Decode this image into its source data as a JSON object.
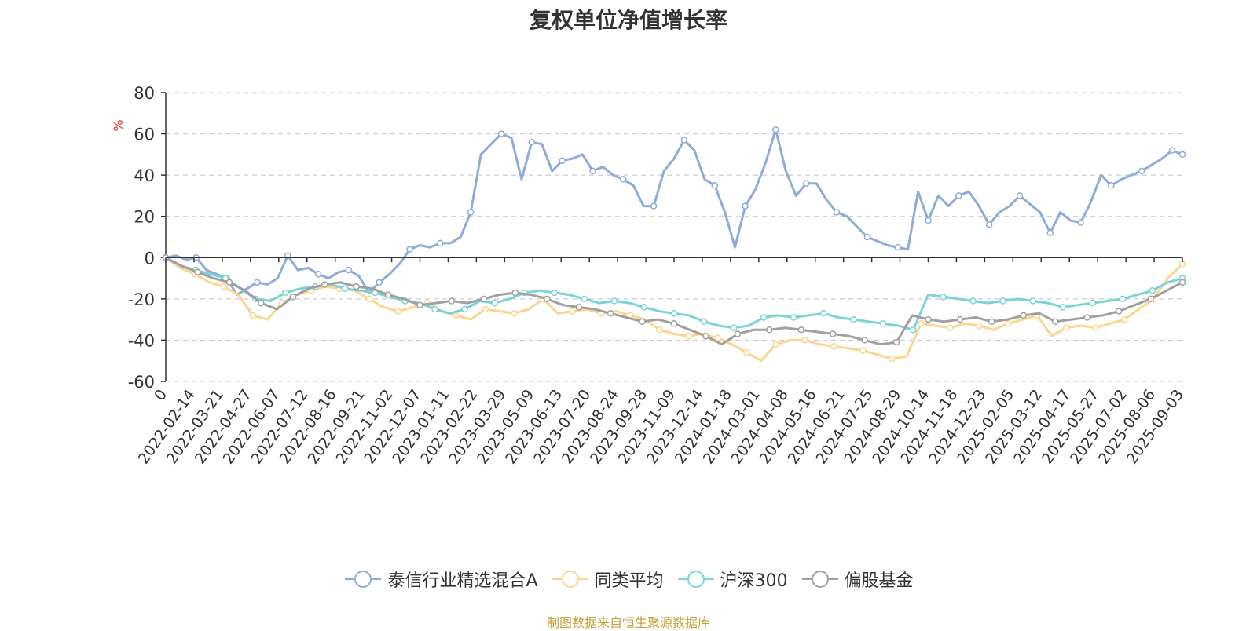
{
  "chart_data": {
    "type": "line",
    "title": "复权单位净值增长率",
    "ylabel": "%",
    "ylim": [
      -60,
      80
    ],
    "yticks": [
      -60,
      -40,
      -20,
      0,
      20,
      40,
      60,
      80
    ],
    "grid": true,
    "legend_position": "bottom",
    "x_ticks": [
      "0",
      "2022-02-14",
      "2022-03-21",
      "2022-04-27",
      "2022-06-07",
      "2022-07-12",
      "2022-08-16",
      "2022-09-21",
      "2022-11-02",
      "2022-12-07",
      "2023-01-11",
      "2023-02-22",
      "2023-03-29",
      "2023-05-09",
      "2023-06-13",
      "2023-07-20",
      "2023-08-24",
      "2023-09-28",
      "2023-11-09",
      "2023-12-14",
      "2024-01-18",
      "2024-03-01",
      "2024-04-08",
      "2024-05-16",
      "2024-06-21",
      "2024-07-25",
      "2024-08-29",
      "2024-10-14",
      "2024-11-18",
      "2024-12-23",
      "2025-02-05",
      "2025-03-12",
      "2025-04-17",
      "2025-05-27",
      "2025-07-02",
      "2025-08-06",
      "2025-09-03"
    ],
    "series": [
      {
        "name": "泰信行业精选混合A",
        "color": "#8eacda",
        "values": [
          0,
          1,
          -1,
          0,
          -6,
          -8,
          -10,
          -18,
          -15,
          -12,
          -13,
          -10,
          1,
          -6,
          -5,
          -8,
          -10,
          -7,
          -6,
          -9,
          -17,
          -12,
          -8,
          -3,
          4,
          6,
          5,
          7,
          7,
          10,
          22,
          50,
          55,
          60,
          58,
          38,
          56,
          55,
          42,
          47,
          48,
          50,
          42,
          44,
          40,
          38,
          35,
          25,
          25,
          42,
          48,
          57,
          52,
          38,
          35,
          22,
          5,
          25,
          33,
          46,
          62,
          42,
          30,
          36,
          36,
          28,
          22,
          20,
          15,
          10,
          8,
          6,
          5,
          4,
          32,
          18,
          30,
          25,
          30,
          32,
          25,
          16,
          22,
          25,
          30,
          26,
          22,
          12,
          22,
          18,
          17,
          27,
          40,
          35,
          38,
          40,
          42,
          45,
          48,
          52,
          50
        ]
      },
      {
        "name": "同类平均",
        "color": "#fcd58e",
        "values": [
          0,
          -5,
          -8,
          -12,
          -14,
          -18,
          -28,
          -30,
          -22,
          -18,
          -16,
          -14,
          -15,
          -16,
          -20,
          -24,
          -26,
          -24,
          -22,
          -26,
          -28,
          -30,
          -25,
          -26,
          -27,
          -25,
          -20,
          -27,
          -26,
          -25,
          -27,
          -26,
          -28,
          -30,
          -35,
          -37,
          -38,
          -37,
          -39,
          -42,
          -46,
          -50,
          -42,
          -40,
          -40,
          -42,
          -43,
          -44,
          -45,
          -47,
          -49,
          -48,
          -32,
          -33,
          -34,
          -32,
          -33,
          -35,
          -32,
          -30,
          -28,
          -38,
          -34,
          -33,
          -34,
          -32,
          -30,
          -25,
          -20,
          -10,
          -3
        ]
      },
      {
        "name": "沪深300",
        "color": "#7bd3d8",
        "values": [
          0,
          -4,
          -6,
          -8,
          -10,
          -15,
          -20,
          -21,
          -17,
          -15,
          -14,
          -13,
          -15,
          -16,
          -17,
          -19,
          -21,
          -22,
          -25,
          -27,
          -25,
          -21,
          -22,
          -20,
          -17,
          -16,
          -17,
          -18,
          -20,
          -22,
          -21,
          -22,
          -24,
          -26,
          -27,
          -28,
          -31,
          -33,
          -34,
          -33,
          -29,
          -28,
          -29,
          -28,
          -27,
          -29,
          -30,
          -31,
          -32,
          -33,
          -35,
          -18,
          -19,
          -20,
          -21,
          -22,
          -21,
          -20,
          -21,
          -22,
          -24,
          -23,
          -22,
          -21,
          -20,
          -18,
          -16,
          -12,
          -10
        ]
      },
      {
        "name": "偏股基金",
        "color": "#a0a0a0",
        "values": [
          0,
          -4,
          -7,
          -10,
          -12,
          -16,
          -22,
          -25,
          -19,
          -15,
          -13,
          -12,
          -14,
          -15,
          -18,
          -20,
          -23,
          -22,
          -21,
          -22,
          -20,
          -18,
          -17,
          -18,
          -20,
          -23,
          -24,
          -25,
          -27,
          -29,
          -31,
          -30,
          -32,
          -35,
          -38,
          -42,
          -37,
          -35,
          -35,
          -34,
          -35,
          -36,
          -37,
          -38,
          -40,
          -42,
          -41,
          -28,
          -30,
          -31,
          -30,
          -29,
          -31,
          -30,
          -28,
          -27,
          -31,
          -30,
          -29,
          -28,
          -26,
          -23,
          -20,
          -16,
          -12
        ]
      }
    ]
  },
  "footer": {
    "source": "制图数据来自恒生聚源数据库"
  }
}
